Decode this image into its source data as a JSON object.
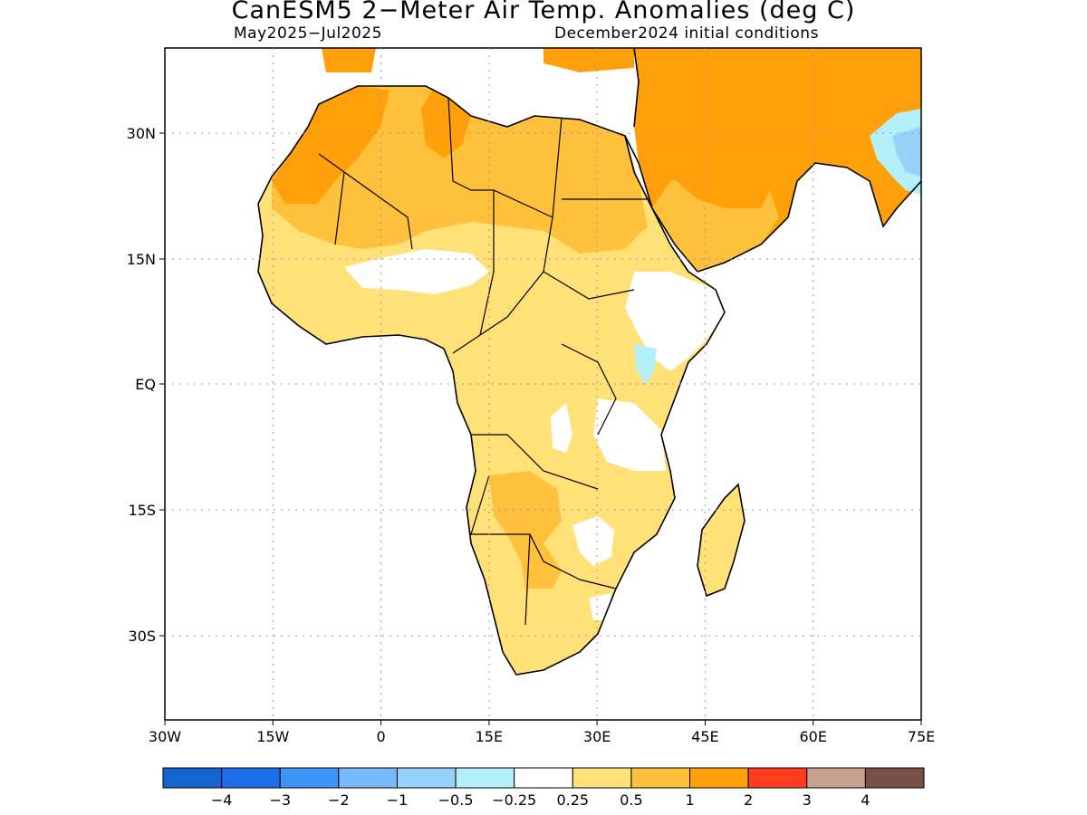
{
  "title": "CanESM5 2−Meter Air Temp. Anomalies (deg C)",
  "subtitle_left": "May2025−Jul2025",
  "subtitle_right": "December2024 initial conditions",
  "lat_ticks": [
    "30N",
    "15N",
    "EQ",
    "15S",
    "30S"
  ],
  "lon_ticks": [
    "30W",
    "15W",
    "0",
    "15E",
    "30E",
    "45E",
    "60E",
    "75E"
  ],
  "legend": {
    "colors": [
      "#1464d2",
      "#1e6eeb",
      "#3c96f5",
      "#78b9fa",
      "#96d2fa",
      "#b4f0fa",
      "#ffffff",
      "#ffe178",
      "#ffc03c",
      "#ffa00a",
      "#ff3c1e",
      "#c8a090",
      "#7a5046"
    ],
    "labels": [
      "−4",
      "−3",
      "−2",
      "−1",
      "−0.5",
      "−0.25",
      "0.25",
      "0.5",
      "1",
      "2",
      "3",
      "4"
    ]
  },
  "map_colors": {
    "weak_warm": "#ffe178",
    "warm": "#ffc03c",
    "strong_warm": "#ffa00a",
    "cool": "#b4f0fa",
    "cooler": "#96d2fa",
    "coast": "#000000"
  }
}
